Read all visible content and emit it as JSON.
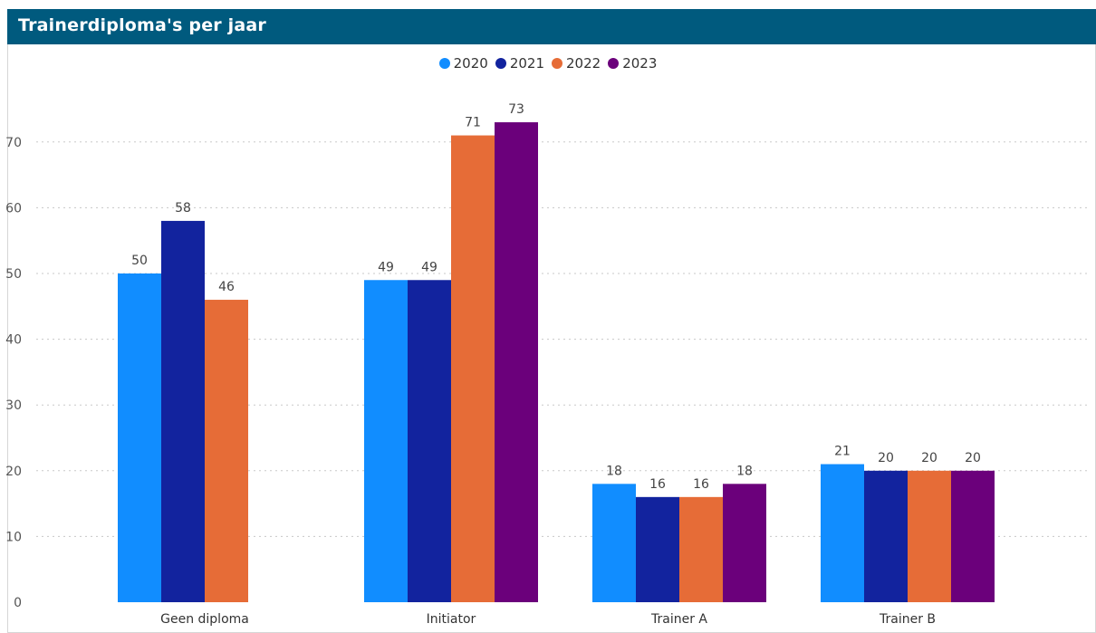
{
  "title": "Trainerdiploma's per jaar",
  "colors": {
    "header_bg": "#005a7e",
    "2020": "#118dff",
    "2021": "#12239e",
    "2022": "#e66c37",
    "2023": "#6b007b"
  },
  "chart_data": {
    "type": "bar",
    "title": "Trainerdiploma's per jaar",
    "xlabel": "",
    "ylabel": "",
    "categories": [
      "Geen diploma",
      "Initiator",
      "Trainer A",
      "Trainer B"
    ],
    "series": [
      {
        "name": "2020",
        "color": "#118dff",
        "values": [
          50,
          49,
          18,
          21
        ]
      },
      {
        "name": "2021",
        "color": "#12239e",
        "values": [
          58,
          49,
          16,
          20
        ]
      },
      {
        "name": "2022",
        "color": "#e66c37",
        "values": [
          46,
          71,
          16,
          20
        ]
      },
      {
        "name": "2023",
        "color": "#6b007b",
        "values": [
          null,
          73,
          18,
          20
        ]
      }
    ],
    "ylim": [
      0,
      75
    ],
    "yticks": [
      0,
      10,
      20,
      30,
      40,
      50,
      60,
      70
    ],
    "grid": true,
    "legend": "top-center",
    "data_labels": true
  }
}
